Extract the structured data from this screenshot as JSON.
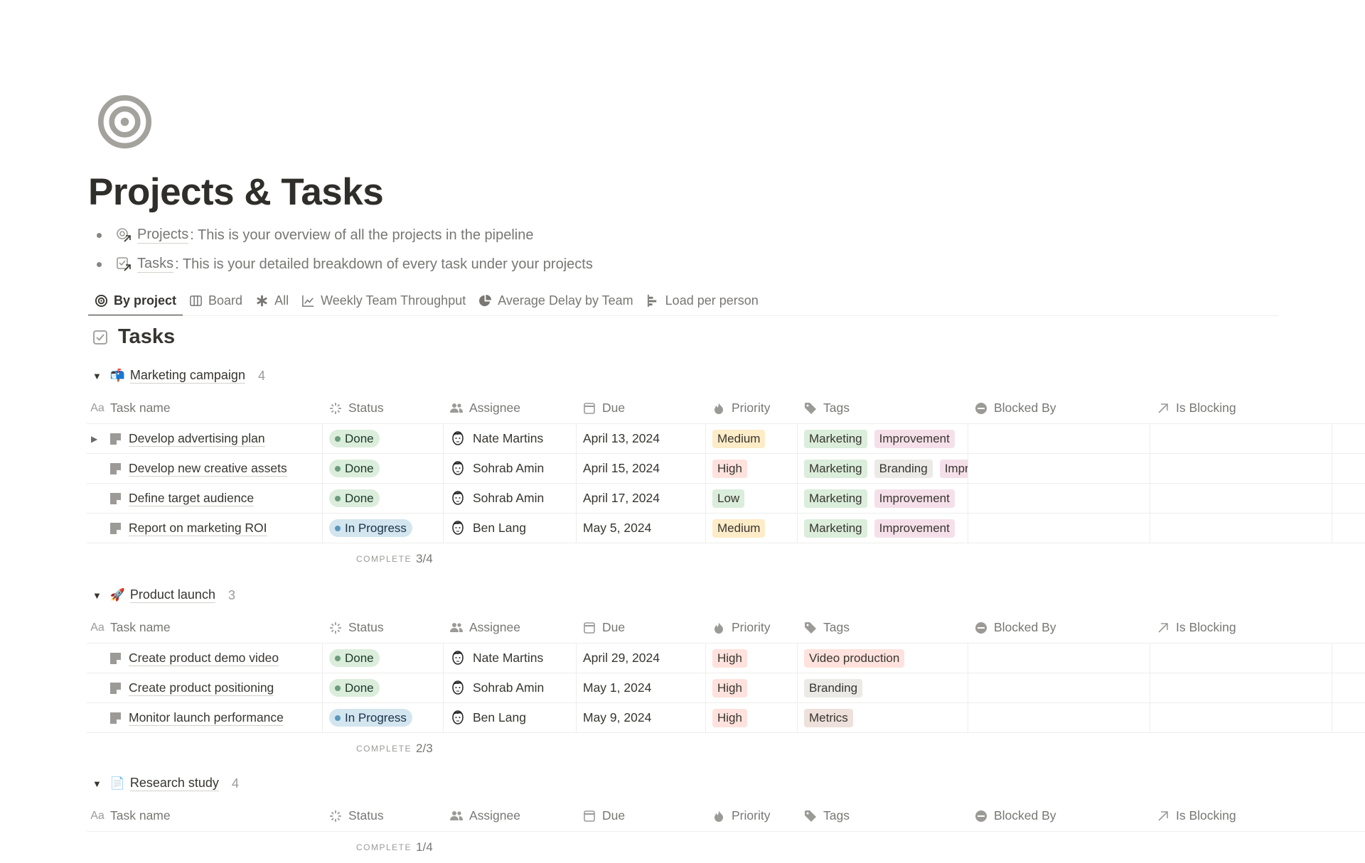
{
  "page": {
    "icon": "target-icon",
    "title": "Projects & Tasks",
    "bullets": [
      {
        "icon": "projects-link-icon",
        "link": "Projects",
        "text": ": This is your overview of all the projects in the pipeline"
      },
      {
        "icon": "tasks-link-icon",
        "link": "Tasks",
        "text": ": This is your detailed breakdown of every task under your projects"
      }
    ]
  },
  "tabs": [
    {
      "label": "By project",
      "icon": "target-icon",
      "active": true
    },
    {
      "label": "Board",
      "icon": "board-icon"
    },
    {
      "label": "All",
      "icon": "asterisk-icon"
    },
    {
      "label": "Weekly Team Throughput",
      "icon": "line-chart-icon"
    },
    {
      "label": "Average Delay by Team",
      "icon": "pie-chart-icon"
    },
    {
      "label": "Load per person",
      "icon": "bar-chart-icon"
    }
  ],
  "database": {
    "title": "Tasks",
    "icon": "checkbox-icon"
  },
  "columns": [
    {
      "label": "Task name",
      "icon": "Aa"
    },
    {
      "label": "Status",
      "icon": "status-icon"
    },
    {
      "label": "Assignee",
      "icon": "people-icon"
    },
    {
      "label": "Due",
      "icon": "calendar-icon"
    },
    {
      "label": "Priority",
      "icon": "flame-icon"
    },
    {
      "label": "Tags",
      "icon": "tag-icon"
    },
    {
      "label": "Blocked By",
      "icon": "blocked-icon"
    },
    {
      "label": "Is Blocking",
      "icon": "arrow-up-right-icon"
    }
  ],
  "complete_label": "COMPLETE",
  "colors": {
    "Done": {
      "bg": "#dbeddb",
      "dot": "#6c9b7d",
      "fg": "#1c3829"
    },
    "In Progress": {
      "bg": "#d3e5ef",
      "dot": "#5b97bd",
      "fg": "#183347"
    },
    "Medium": "#fdecc8",
    "High": "#ffe2dd",
    "Low": "#dbeddb",
    "Marketing": "#dbeddb",
    "Improvement": "#f5e0e9",
    "Branding": "#ebeae7",
    "Video production": "#ffe2dd",
    "Metrics": "#eee0da",
    "Improvement2": "#f5e0e9"
  },
  "groups": [
    {
      "name": "Marketing campaign",
      "emoji": "📬",
      "count": "4",
      "complete": "3/4",
      "rows": [
        {
          "name": "Develop advertising plan",
          "expandable": true,
          "status": "Done",
          "assignee": "Nate Martins",
          "due": "April 13, 2024",
          "priority": "Medium",
          "tags": [
            "Marketing",
            "Improvement"
          ]
        },
        {
          "name": "Develop new creative assets",
          "status": "Done",
          "assignee": "Sohrab Amin",
          "due": "April 15, 2024",
          "priority": "High",
          "tags": [
            "Marketing",
            "Branding",
            "Improvement"
          ]
        },
        {
          "name": "Define target audience",
          "status": "Done",
          "assignee": "Sohrab Amin",
          "due": "April 17, 2024",
          "priority": "Low",
          "tags": [
            "Marketing",
            "Improvement"
          ]
        },
        {
          "name": "Report on marketing ROI",
          "status": "In Progress",
          "assignee": "Ben Lang",
          "due": "May 5, 2024",
          "priority": "Medium",
          "tags": [
            "Marketing",
            "Improvement"
          ]
        }
      ]
    },
    {
      "name": "Product launch",
      "emoji": "🚀",
      "count": "3",
      "complete": "2/3",
      "rows": [
        {
          "name": "Create product demo video",
          "status": "Done",
          "assignee": "Nate Martins",
          "due": "April 29, 2024",
          "priority": "High",
          "tags": [
            "Video production"
          ]
        },
        {
          "name": "Create product positioning",
          "status": "Done",
          "assignee": "Sohrab Amin",
          "due": "May 1, 2024",
          "priority": "High",
          "tags": [
            "Branding"
          ]
        },
        {
          "name": "Monitor launch performance",
          "status": "In Progress",
          "assignee": "Ben Lang",
          "due": "May 9, 2024",
          "priority": "High",
          "tags": [
            "Metrics"
          ]
        }
      ]
    },
    {
      "name": "Research study",
      "emoji": "📄",
      "count": "4",
      "complete": "1/4",
      "rows": []
    }
  ]
}
